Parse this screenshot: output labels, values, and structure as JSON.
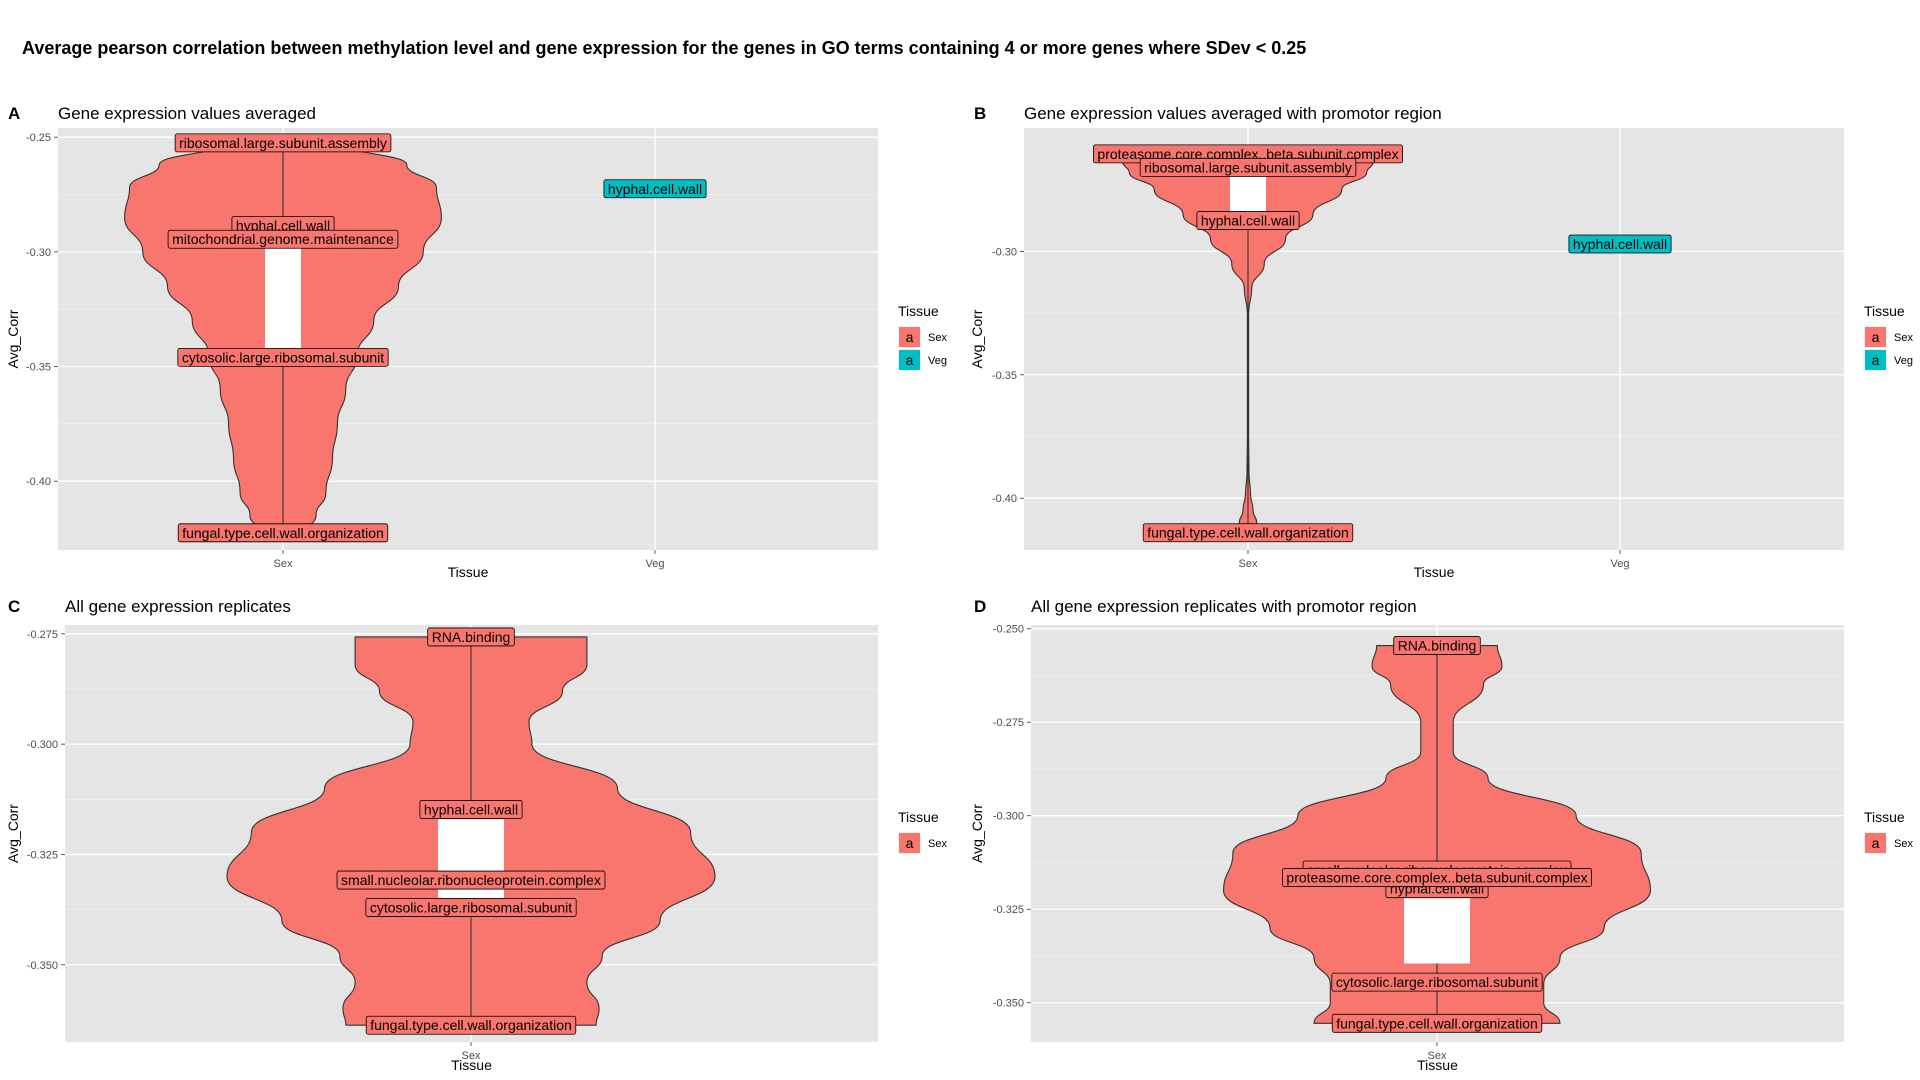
{
  "title": "Average pearson correlation between methylation level and gene expression for the genes in GO terms containing 4 or more genes where SDev < 0.25",
  "colors": {
    "Sex": "#f8766d",
    "Veg": "#00bfc4",
    "panel_bg": "#e5e5e5",
    "grid": "#ffffff"
  },
  "chart_data": [
    {
      "panel_tag": "A",
      "subtitle": "Gene expression values averaged",
      "type": "violin",
      "xlabel": "Tissue",
      "ylabel": "Avg_Corr",
      "categories": [
        "Sex",
        "Veg"
      ],
      "ylim": [
        -0.43,
        -0.246
      ],
      "yticks": [
        -0.25,
        -0.3,
        -0.35,
        -0.4
      ],
      "ytick_labels": [
        "-0.25",
        "-0.30",
        "-0.35",
        "-0.40"
      ],
      "legend": {
        "title": "Tissue",
        "items": [
          {
            "key": "a",
            "name": "Sex"
          },
          {
            "key": "a",
            "name": "Veg"
          }
        ]
      },
      "violins": [
        {
          "category": "Sex",
          "min": -0.4225,
          "max": -0.2525,
          "profile": [
            [
              -0.4225,
              0.14
            ],
            [
              -0.415,
              0.2
            ],
            [
              -0.405,
              0.26
            ],
            [
              -0.39,
              0.3
            ],
            [
              -0.375,
              0.33
            ],
            [
              -0.36,
              0.38
            ],
            [
              -0.345,
              0.45
            ],
            [
              -0.33,
              0.55
            ],
            [
              -0.315,
              0.7
            ],
            [
              -0.3,
              0.85
            ],
            [
              -0.285,
              0.96
            ],
            [
              -0.272,
              0.93
            ],
            [
              -0.262,
              0.75
            ],
            [
              -0.2525,
              0.35
            ]
          ],
          "box": {
            "q1": -0.3425,
            "median": -0.3,
            "q3": -0.2975,
            "whisker_low": -0.4225,
            "whisker_high": -0.2525
          }
        }
      ],
      "labels": [
        {
          "category": "Sex",
          "y": -0.2525,
          "text": "ribosomal.large.subunit.assembly"
        },
        {
          "category": "Sex",
          "y": -0.2885,
          "text": "hyphal.cell.wall"
        },
        {
          "category": "Sex",
          "y": -0.2945,
          "text": "mitochondrial.genome.maintenance"
        },
        {
          "category": "Sex",
          "y": -0.346,
          "text": "cytosolic.large.ribosomal.subunit"
        },
        {
          "category": "Sex",
          "y": -0.4225,
          "text": "fungal.type.cell.wall.organization"
        },
        {
          "category": "Veg",
          "y": -0.2725,
          "text": "hyphal.cell.wall"
        }
      ]
    },
    {
      "panel_tag": "B",
      "subtitle": "Gene expression values averaged with promotor region",
      "type": "violin",
      "xlabel": "Tissue",
      "ylabel": "Avg_Corr",
      "categories": [
        "Sex",
        "Veg"
      ],
      "ylim": [
        -0.421,
        -0.25
      ],
      "yticks": [
        -0.3,
        -0.35,
        -0.4
      ],
      "ytick_labels": [
        "-0.30",
        "-0.35",
        "-0.40"
      ],
      "legend": {
        "title": "Tissue",
        "items": [
          {
            "key": "a",
            "name": "Sex"
          },
          {
            "key": "a",
            "name": "Veg"
          }
        ]
      },
      "violins": [
        {
          "category": "Sex",
          "min": -0.414,
          "max": -0.2605,
          "profile": [
            [
              -0.414,
              0.09
            ],
            [
              -0.41,
              0.07
            ],
            [
              -0.405,
              0.04
            ],
            [
              -0.398,
              0.02
            ],
            [
              -0.39,
              0.008
            ],
            [
              -0.375,
              0.005
            ],
            [
              -0.35,
              0.005
            ],
            [
              -0.325,
              0.005
            ],
            [
              -0.315,
              0.03
            ],
            [
              -0.305,
              0.13
            ],
            [
              -0.295,
              0.3
            ],
            [
              -0.285,
              0.52
            ],
            [
              -0.275,
              0.75
            ],
            [
              -0.268,
              0.95
            ],
            [
              -0.264,
              1.0
            ],
            [
              -0.2605,
              0.85
            ]
          ],
          "box": {
            "q1": -0.2845,
            "median": -0.276,
            "q3": -0.2695,
            "whisker_low": -0.414,
            "whisker_high": -0.2605
          }
        }
      ],
      "labels": [
        {
          "category": "Sex",
          "y": -0.2605,
          "text": "proteasome.core.complex..beta.subunit.complex"
        },
        {
          "category": "Sex",
          "y": -0.266,
          "text": "ribosomal.large.subunit.assembly"
        },
        {
          "category": "Sex",
          "y": -0.2875,
          "text": "hyphal.cell.wall"
        },
        {
          "category": "Sex",
          "y": -0.414,
          "text": "fungal.type.cell.wall.organization"
        },
        {
          "category": "Veg",
          "y": -0.297,
          "text": "hyphal.cell.wall"
        }
      ]
    },
    {
      "panel_tag": "C",
      "subtitle": "All gene expression replicates",
      "type": "violin",
      "xlabel": "Tissue",
      "ylabel": "Avg_Corr",
      "categories": [
        "Sex"
      ],
      "ylim": [
        -0.3675,
        -0.273
      ],
      "yticks": [
        -0.275,
        -0.3,
        -0.325,
        -0.35
      ],
      "ytick_labels": [
        "-0.275",
        "-0.300",
        "-0.325",
        "-0.350"
      ],
      "legend": {
        "title": "Tissue",
        "items": [
          {
            "key": "a",
            "name": "Sex"
          }
        ]
      },
      "violins": [
        {
          "category": "Sex",
          "min": -0.3637,
          "max": -0.2757,
          "profile": [
            [
              -0.3637,
              0.41
            ],
            [
              -0.36,
              0.42
            ],
            [
              -0.354,
              0.38
            ],
            [
              -0.348,
              0.43
            ],
            [
              -0.34,
              0.62
            ],
            [
              -0.33,
              0.8
            ],
            [
              -0.32,
              0.72
            ],
            [
              -0.31,
              0.48
            ],
            [
              -0.3,
              0.2
            ],
            [
              -0.295,
              0.19
            ],
            [
              -0.288,
              0.3
            ],
            [
              -0.282,
              0.38
            ],
            [
              -0.2757,
              0.38
            ]
          ],
          "box": {
            "q1": -0.3352,
            "median": -0.327,
            "q3": -0.317,
            "whisker_low": -0.3637,
            "whisker_high": -0.2757
          }
        }
      ],
      "labels": [
        {
          "category": "Sex",
          "y": -0.2757,
          "text": "RNA.binding"
        },
        {
          "category": "Sex",
          "y": -0.3148,
          "text": "hyphal.cell.wall"
        },
        {
          "category": "Sex",
          "y": -0.3308,
          "text": "small.nucleolar.ribonucleoprotein.complex"
        },
        {
          "category": "Sex",
          "y": -0.337,
          "text": "cytosolic.large.ribosomal.subunit"
        },
        {
          "category": "Sex",
          "y": -0.3637,
          "text": "fungal.type.cell.wall.organization"
        }
      ]
    },
    {
      "panel_tag": "D",
      "subtitle": "All gene expression replicates with promotor region",
      "type": "violin",
      "xlabel": "Tissue",
      "ylabel": "Avg_Corr",
      "categories": [
        "Sex"
      ],
      "ylim": [
        -0.3605,
        -0.249
      ],
      "yticks": [
        -0.25,
        -0.275,
        -0.3,
        -0.325,
        -0.35
      ],
      "ytick_labels": [
        "-0.250",
        "-0.275",
        "-0.300",
        "-0.325",
        "-0.350"
      ],
      "legend": {
        "title": "Tissue",
        "items": [
          {
            "key": "a",
            "name": "Sex"
          }
        ]
      },
      "violins": [
        {
          "category": "Sex",
          "min": -0.3555,
          "max": -0.2545,
          "profile": [
            [
              -0.3555,
              0.53
            ],
            [
              -0.35,
              0.46
            ],
            [
              -0.345,
              0.46
            ],
            [
              -0.338,
              0.53
            ],
            [
              -0.33,
              0.72
            ],
            [
              -0.32,
              0.92
            ],
            [
              -0.31,
              0.88
            ],
            [
              -0.3,
              0.6
            ],
            [
              -0.29,
              0.22
            ],
            [
              -0.283,
              0.07
            ],
            [
              -0.275,
              0.07
            ],
            [
              -0.265,
              0.2
            ],
            [
              -0.26,
              0.28
            ],
            [
              -0.2545,
              0.26
            ]
          ],
          "box": {
            "q1": -0.3395,
            "median": -0.327,
            "q3": -0.3185,
            "whisker_low": -0.3555,
            "whisker_high": -0.2545
          }
        }
      ],
      "labels": [
        {
          "category": "Sex",
          "y": -0.2545,
          "text": "RNA.binding"
        },
        {
          "category": "Sex",
          "y": -0.3145,
          "text": "small.nucleolar.ribonucleoprotein.complex"
        },
        {
          "category": "Sex",
          "y": -0.3195,
          "text": "hyphal.cell.wall"
        },
        {
          "category": "Sex",
          "y": -0.3165,
          "text": "proteasome.core.complex..beta.subunit.complex"
        },
        {
          "category": "Sex",
          "y": -0.3445,
          "text": "cytosolic.large.ribosomal.subunit"
        },
        {
          "category": "Sex",
          "y": -0.3555,
          "text": "fungal.type.cell.wall.organization"
        }
      ]
    }
  ]
}
